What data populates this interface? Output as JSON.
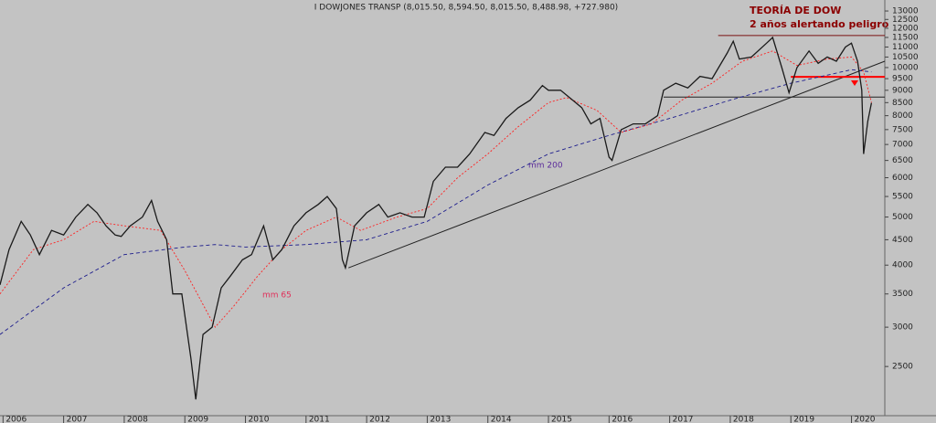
{
  "chart_data": {
    "type": "line",
    "title": "I DOWJONES TRANSP (8,015.50, 8,594.50, 8,015.50, 8,488.98, +727.980)",
    "annotations": [
      "TEORÍA DE DOW",
      "2 años alertando peligro",
      "mm 200",
      "mm 65"
    ],
    "log_scale": true,
    "grid": false,
    "xlim": [
      2005.95,
      2020.55
    ],
    "xticks": [
      2006,
      2007,
      2008,
      2009,
      2010,
      2011,
      2012,
      2013,
      2014,
      2015,
      2016,
      2017,
      2018,
      2019,
      2020
    ],
    "ylim": [
      1990,
      13680
    ],
    "yticks": [
      2500,
      3000,
      3500,
      4000,
      4500,
      5000,
      5500,
      6000,
      6500,
      7000,
      7500,
      8000,
      8500,
      9000,
      9500,
      10000,
      10500,
      11000,
      11500,
      12000,
      12500,
      13000
    ],
    "series": [
      {
        "color": "#1a1a1a",
        "x": [
          2005.95,
          2006.1,
          2006.3,
          2006.45,
          2006.6,
          2006.8,
          2007.0,
          2007.2,
          2007.4,
          2007.55,
          2007.7,
          2007.85,
          2007.95,
          2008.1,
          2008.3,
          2008.45,
          2008.55,
          2008.7,
          2008.8,
          2008.95,
          2009.1,
          2009.18,
          2009.3,
          2009.45,
          2009.6,
          2009.75,
          2009.95,
          2010.1,
          2010.3,
          2010.45,
          2010.6,
          2010.8,
          2011.0,
          2011.2,
          2011.35,
          2011.5,
          2011.6,
          2011.65,
          2011.8,
          2012.0,
          2012.2,
          2012.35,
          2012.55,
          2012.75,
          2012.95,
          2013.1,
          2013.3,
          2013.5,
          2013.7,
          2013.95,
          2014.1,
          2014.3,
          2014.5,
          2014.7,
          2014.9,
          2015.0,
          2015.2,
          2015.4,
          2015.55,
          2015.7,
          2015.85,
          2016.0,
          2016.05,
          2016.2,
          2016.4,
          2016.6,
          2016.8,
          2016.9,
          2017.1,
          2017.3,
          2017.5,
          2017.7,
          2017.95,
          2018.05,
          2018.15,
          2018.35,
          2018.6,
          2018.7,
          2018.85,
          2018.97,
          2019.1,
          2019.3,
          2019.45,
          2019.6,
          2019.75,
          2019.9,
          2020.0,
          2020.1,
          2020.17,
          2020.2,
          2020.27,
          2020.33
        ],
        "values": [
          3650,
          4300,
          4900,
          4600,
          4200,
          4700,
          4600,
          5000,
          5300,
          5100,
          4800,
          4600,
          4570,
          4800,
          5000,
          5400,
          4900,
          4500,
          3500,
          3500,
          2600,
          2146,
          2900,
          3000,
          3600,
          3800,
          4100,
          4200,
          4800,
          4100,
          4300,
          4800,
          5100,
          5300,
          5500,
          5200,
          4100,
          3950,
          4800,
          5100,
          5300,
          5000,
          5100,
          5000,
          5000,
          5900,
          6300,
          6300,
          6700,
          7400,
          7300,
          7900,
          8300,
          8600,
          9200,
          9000,
          9000,
          8600,
          8300,
          7700,
          7900,
          6600,
          6500,
          7500,
          7700,
          7700,
          8000,
          9000,
          9300,
          9100,
          9600,
          9500,
          10700,
          11300,
          10400,
          10500,
          11200,
          11500,
          10000,
          8900,
          10000,
          10800,
          10200,
          10500,
          10300,
          11000,
          11200,
          10300,
          9000,
          6700,
          7800,
          8489
        ]
      },
      {
        "color": "#ff2020",
        "dash": "2,2",
        "x": [
          2005.95,
          2006.5,
          2007.0,
          2007.5,
          2008.0,
          2008.6,
          2009.0,
          2009.5,
          2009.8,
          2010.2,
          2010.6,
          2011.0,
          2011.5,
          2011.9,
          2012.5,
          2013.0,
          2013.5,
          2014.0,
          2014.5,
          2015.0,
          2015.3,
          2015.8,
          2016.2,
          2016.7,
          2017.2,
          2017.7,
          2018.2,
          2018.7,
          2019.1,
          2019.6,
          2020.0,
          2020.2,
          2020.33
        ],
        "values": [
          3500,
          4300,
          4500,
          4900,
          4800,
          4700,
          3900,
          3000,
          3300,
          3800,
          4300,
          4700,
          5000,
          4700,
          5000,
          5200,
          6000,
          6700,
          7600,
          8500,
          8700,
          8200,
          7400,
          7700,
          8600,
          9300,
          10300,
          10800,
          10100,
          10400,
          10500,
          9800,
          8500
        ]
      },
      {
        "color": "#1c1c8c",
        "dash": "4,3",
        "x": [
          2005.95,
          2007.0,
          2008.0,
          2009.0,
          2009.5,
          2010.0,
          2011.0,
          2012.0,
          2013.0,
          2014.0,
          2015.0,
          2016.0,
          2017.0,
          2018.0,
          2019.0,
          2020.0,
          2020.33
        ],
        "values": [
          2900,
          3600,
          4200,
          4350,
          4400,
          4350,
          4400,
          4500,
          4900,
          5800,
          6700,
          7300,
          7900,
          8600,
          9300,
          9900,
          9800
        ]
      }
    ],
    "lines": [
      {
        "color": "#222222",
        "x": [
          2011.7,
          2020.55
        ],
        "values": [
          3950,
          10300
        ]
      },
      {
        "color": "#7a1010",
        "x": [
          2017.8,
          2020.55
        ],
        "values": [
          11600,
          11600
        ]
      },
      {
        "color": "#ff0000",
        "x": [
          2019.0,
          2020.55
        ],
        "values": [
          9580,
          9580
        ]
      },
      {
        "color": "#222222",
        "x": [
          2016.9,
          2020.55
        ],
        "values": [
          8720,
          8720
        ]
      }
    ]
  }
}
